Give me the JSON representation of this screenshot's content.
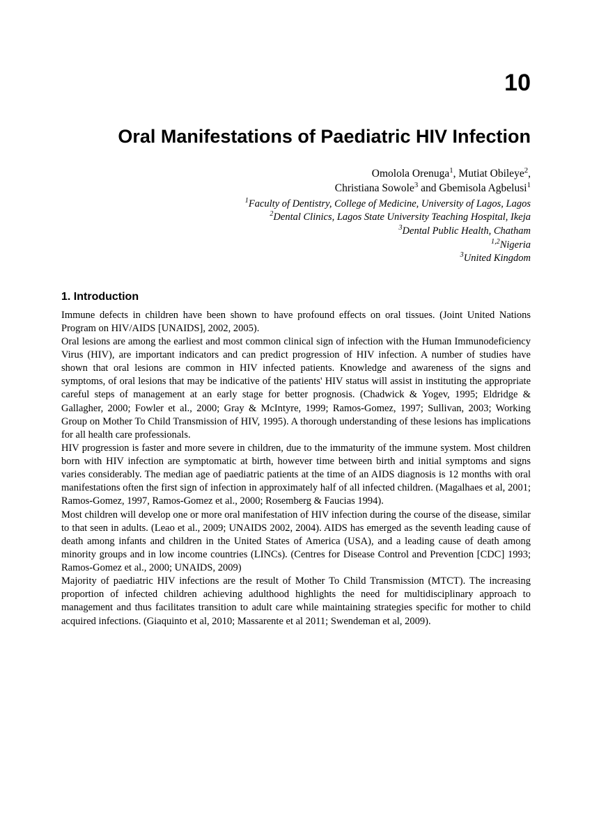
{
  "chapter_number": "10",
  "title": "Oral Manifestations of Paediatric HIV Infection",
  "authors_line1": "Omolola Orenuga",
  "authors_sup1": "1",
  "authors_line1b": ", Mutiat Obileye",
  "authors_sup2": "2",
  "authors_line1c": ",",
  "authors_line2a": "Christiana Sowole",
  "authors_sup3": "3",
  "authors_line2b": " and Gbemisola Agbelusi",
  "authors_sup4": "1",
  "affil1_sup": "1",
  "affil1": "Faculty of Dentistry, College of Medicine, University of Lagos, Lagos",
  "affil2_sup": "2",
  "affil2": "Dental Clinics, Lagos State University Teaching Hospital, Ikeja",
  "affil3_sup": "3",
  "affil3": "Dental Public Health, Chatham",
  "country1_sup": "1,2",
  "country1": "Nigeria",
  "country2_sup": "3",
  "country2": "United Kingdom",
  "section1_heading": "1. Introduction",
  "para1": "Immune defects in children have been shown to have profound effects on oral tissues. (Joint United Nations Program on HIV/AIDS [UNAIDS], 2002, 2005).",
  "para2": "Oral lesions are among the earliest and most common clinical sign of infection with the Human Immunodeficiency Virus (HIV), are important indicators and can predict progression of HIV infection. A number of studies have shown that oral lesions are common in HIV infected patients. Knowledge and awareness of the signs and symptoms, of oral lesions that may be indicative of the patients' HIV status will assist in instituting the appropriate careful steps of management at an early stage for better prognosis. (Chadwick & Yogev, 1995; Eldridge & Gallagher, 2000; Fowler et al., 2000; Gray & McIntyre, 1999; Ramos-Gomez, 1997; Sullivan, 2003; Working Group on Mother To Child Transmission of HIV, 1995). A thorough understanding of these lesions has implications for all health care professionals.",
  "para3": "HIV progression is faster and more severe in children, due to the immaturity of the immune system. Most children born with HIV infection are symptomatic at birth, however time between birth and initial symptoms and signs varies considerably. The median age of paediatric patients at the time of an AIDS diagnosis is 12 months with oral manifestations often the first sign of infection in approximately half of all infected children. (Magalhaes et al, 2001; Ramos-Gomez, 1997, Ramos-Gomez et al., 2000; Rosemberg & Faucias 1994).",
  "para4": "Most children will develop one or more oral manifestation of HIV infection during the course of the disease, similar to that seen in adults. (Leao et al., 2009; UNAIDS 2002, 2004). AIDS has emerged as the seventh leading cause of death among infants and children in the United States of America (USA), and a leading cause of death among minority groups and in low income countries (LINCs). (Centres for Disease Control and Prevention [CDC] 1993; Ramos-Gomez et al., 2000; UNAIDS, 2009)",
  "para5": "Majority of paediatric HIV infections are the result of Mother To Child Transmission (MTCT). The increasing proportion of infected children achieving adulthood highlights the need for multidisciplinary approach to management and thus facilitates transition to adult care while maintaining strategies specific for mother to child acquired infections. (Giaquinto et al, 2010; Massarente et al 2011; Swendeman et al, 2009)."
}
